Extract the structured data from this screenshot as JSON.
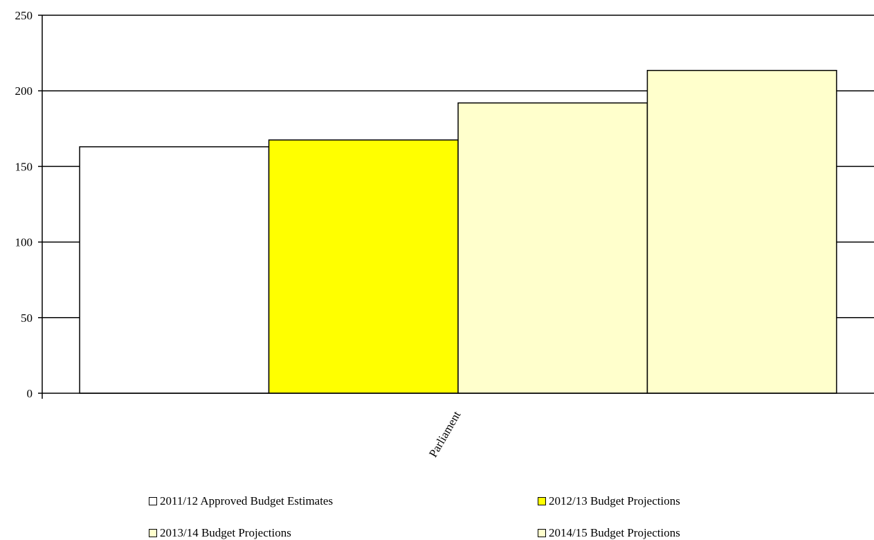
{
  "chart_data": {
    "type": "bar",
    "categories": [
      "Parliament"
    ],
    "ylim": [
      0,
      250
    ],
    "yticks": [
      0,
      50,
      100,
      150,
      200,
      250
    ],
    "grid": true,
    "legend_position": "bottom",
    "series": [
      {
        "name": "2011/12 Approved Budget Estimates",
        "values": [
          163
        ],
        "color": "#FFFFFF"
      },
      {
        "name": "2012/13 Budget Projections",
        "values": [
          167.5
        ],
        "color": "#FFFF00"
      },
      {
        "name": "2013/14 Budget Projections",
        "values": [
          192
        ],
        "color": "#FFFFCC"
      },
      {
        "name": "2014/15 Budget Projections",
        "values": [
          213.5
        ],
        "color": "#FFFFCC"
      }
    ]
  }
}
